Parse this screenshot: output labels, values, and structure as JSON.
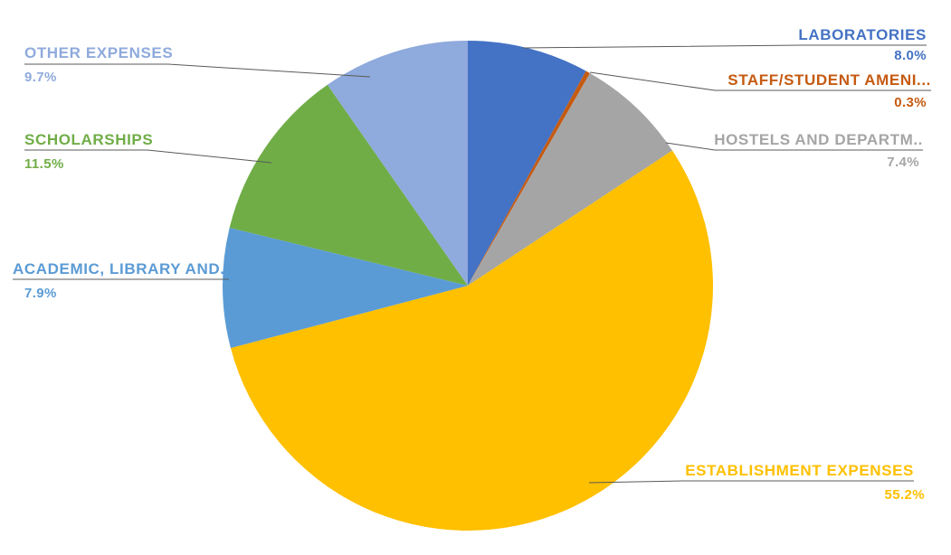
{
  "chart_data": {
    "type": "pie",
    "title": "",
    "legend_position": "none",
    "labels_style": "callout-with-leader-lines",
    "total": 100.0,
    "series": [
      {
        "id": "laboratories",
        "label": "LABORATORIES",
        "value": 8.0,
        "value_label": "8.0%",
        "color": "#4472C4"
      },
      {
        "id": "staff-student-amenities",
        "label": "STAFF/STUDENT AMENI...",
        "value": 0.3,
        "value_label": "0.3%",
        "color": "#C55A11"
      },
      {
        "id": "hostels-and-departments",
        "label": "HOSTELS AND DEPARTM..",
        "value": 7.4,
        "value_label": "7.4%",
        "color": "#A5A5A5"
      },
      {
        "id": "establishment-expenses",
        "label": "ESTABLISHMENT EXPENSES",
        "value": 55.2,
        "value_label": "55.2%",
        "color": "#FFC000"
      },
      {
        "id": "academic-library",
        "label": "ACADEMIC, LIBRARY AND...",
        "value": 7.9,
        "value_label": "7.9%",
        "color": "#5B9BD5"
      },
      {
        "id": "scholarships",
        "label": "SCHOLARSHIPS",
        "value": 11.5,
        "value_label": "11.5%",
        "color": "#70AD47"
      },
      {
        "id": "other-expenses",
        "label": "OTHER EXPENSES",
        "value": 9.7,
        "value_label": "9.7%",
        "color": "#8FAADC"
      }
    ]
  }
}
